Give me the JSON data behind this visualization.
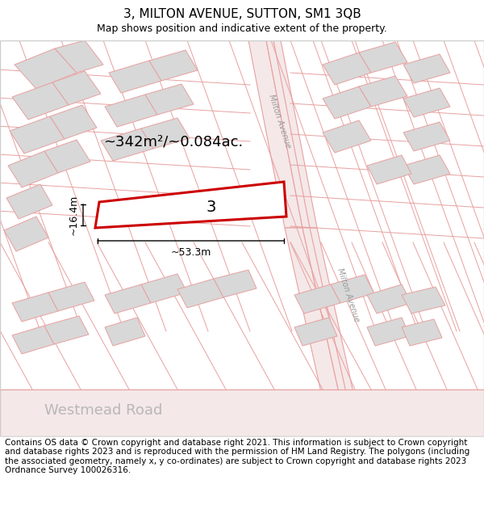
{
  "title": "3, MILTON AVENUE, SUTTON, SM1 3QB",
  "subtitle": "Map shows position and indicative extent of the property.",
  "footer": "Contains OS data © Crown copyright and database right 2021. This information is subject to Crown copyright and database rights 2023 and is reproduced with the permission of HM Land Registry. The polygons (including the associated geometry, namely x, y co-ordinates) are subject to Crown copyright and database rights 2023 Ordnance Survey 100026316.",
  "map_bg": "#ffffff",
  "line_color": "#e8a0a0",
  "building_fill": "#d8d8d8",
  "building_stroke": "#e8a0a0",
  "highlight_fill": "#ffffff",
  "highlight_stroke": "#cc0000",
  "road_fill": "#f5e8e8",
  "area_text": "~342m²/~0.084ac.",
  "width_text": "~53.3m",
  "height_text": "~16.4m",
  "plot_number": "3",
  "road_label_1": "Milton Avenue",
  "road_label_2": "Milton Avenue",
  "road_label_bottom": "Westmead Road",
  "title_fontsize": 11,
  "subtitle_fontsize": 9,
  "footer_fontsize": 7.5,
  "dim_fontsize": 9,
  "area_fontsize": 13,
  "plot_num_fontsize": 14,
  "road_label_fontsize": 7,
  "westmead_fontsize": 13
}
